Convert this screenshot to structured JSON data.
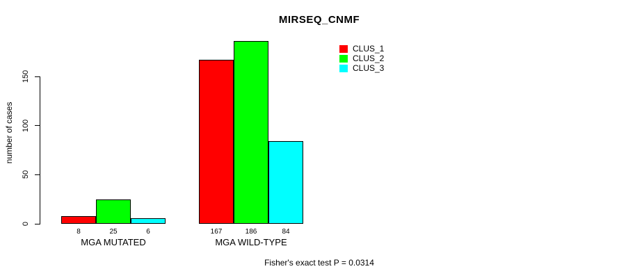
{
  "title": "MIRSEQ_CNMF",
  "footer": "Fisher's exact test P = 0.0314",
  "chart_data": {
    "type": "bar",
    "title": "MIRSEQ_CNMF",
    "categories": [
      "MGA MUTATED",
      "MGA WILD-TYPE"
    ],
    "series": [
      {
        "name": "CLUS_1",
        "color": "#ff0000",
        "values": [
          8,
          167
        ]
      },
      {
        "name": "CLUS_2",
        "color": "#00ff00",
        "values": [
          25,
          186
        ]
      },
      {
        "name": "CLUS_3",
        "color": "#00ffff",
        "values": [
          6,
          84
        ]
      }
    ],
    "xlabel": "",
    "ylabel": "number of cases",
    "yticks": [
      0,
      50,
      100,
      150
    ],
    "ylim": [
      0,
      186
    ],
    "bar_labels_shown": true,
    "grid": false,
    "legend_position": "top-right",
    "annotation": "Fisher's exact test P = 0.0314"
  }
}
